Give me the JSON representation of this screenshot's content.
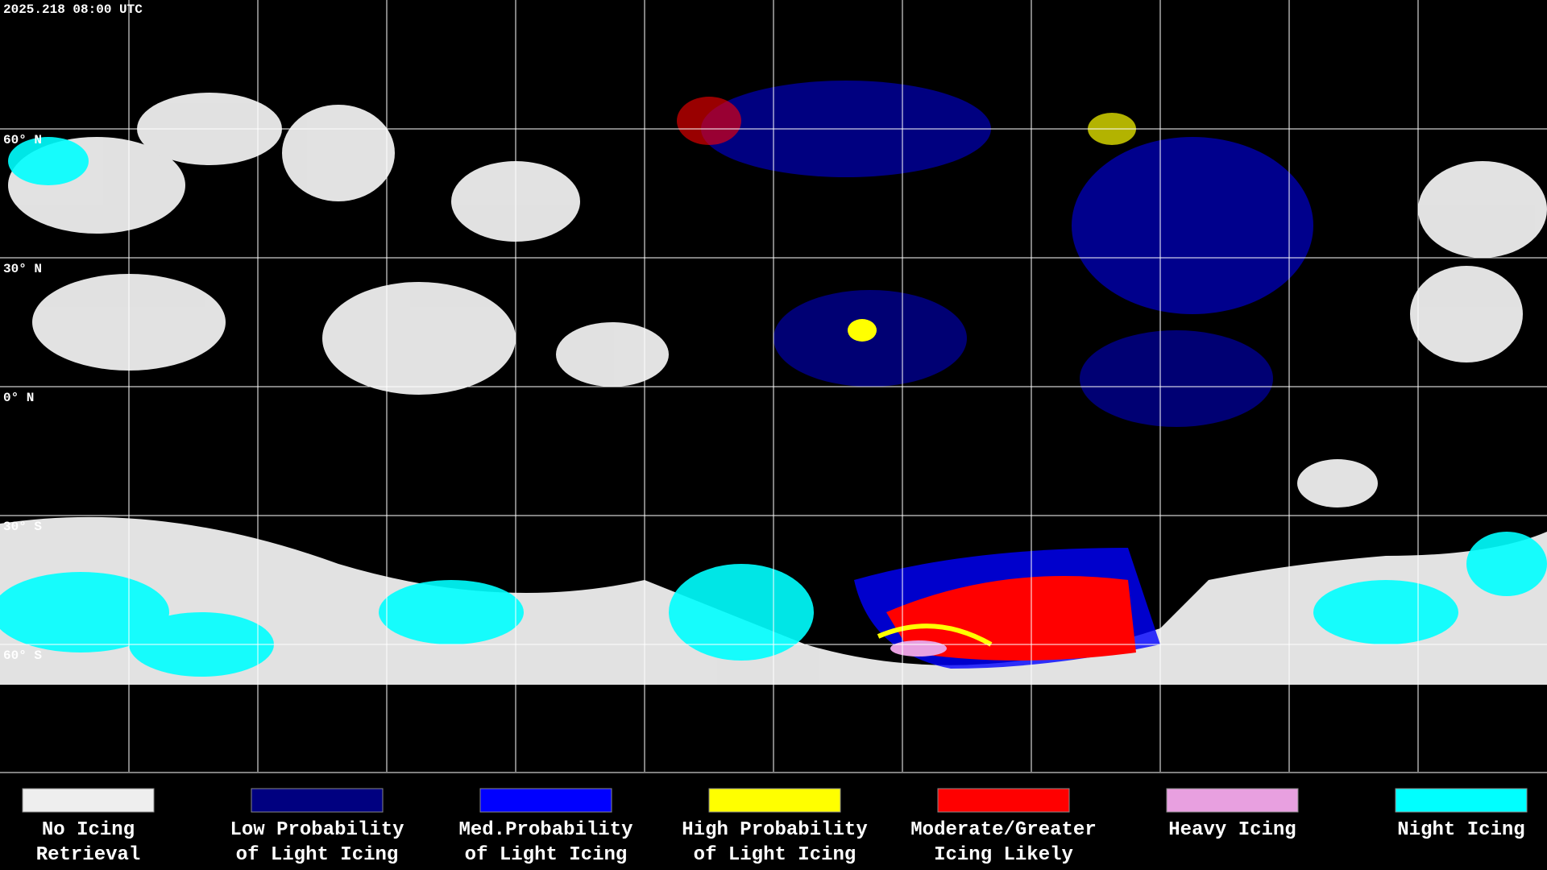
{
  "header": {
    "timestamp": "2025.218 08:00 UTC"
  },
  "map": {
    "latitude_labels": [
      "60° N",
      "30° N",
      "0° N",
      "30° S",
      "60° S"
    ]
  },
  "legend": {
    "items": [
      {
        "color": "#eeeeee",
        "lines": [
          "No Icing",
          "Retrieval"
        ]
      },
      {
        "color": "#000080",
        "lines": [
          "Low Probability",
          "of Light Icing"
        ]
      },
      {
        "color": "#0000ff",
        "lines": [
          "Med.Probability",
          "of Light Icing"
        ]
      },
      {
        "color": "#ffff00",
        "lines": [
          "High Probability",
          "of Light Icing"
        ]
      },
      {
        "color": "#ff0000",
        "lines": [
          "Moderate/Greater",
          "Icing Likely"
        ]
      },
      {
        "color": "#e8a0e0",
        "lines": [
          "Heavy Icing"
        ]
      },
      {
        "color": "#00ffff",
        "lines": [
          "Night Icing"
        ]
      }
    ]
  }
}
